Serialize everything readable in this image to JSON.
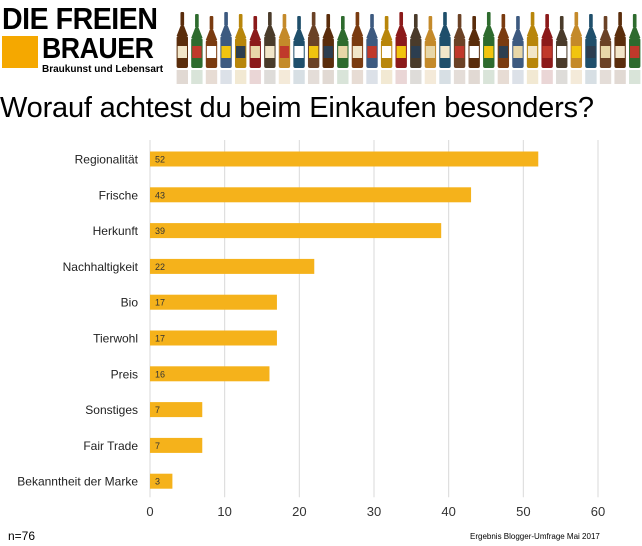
{
  "header": {
    "logo_line1": "DIE FREIEN",
    "logo_line2": "BRAUER",
    "tagline": "Braukunst und Lebensart",
    "brand_color": "#f5a800"
  },
  "question": "Worauf achtest du beim Einkaufen besonders?",
  "footer": {
    "sample_size": "n=76",
    "source": "Ergebnis Blogger-Umfrage Mai 2017"
  },
  "chart_data": {
    "type": "bar",
    "orientation": "horizontal",
    "categories": [
      "Regionalität",
      "Frische",
      "Herkunft",
      "Nachhaltigkeit",
      "Bio",
      "Tierwohl",
      "Preis",
      "Sonstiges",
      "Fair Trade",
      "Bekanntheit der Marke"
    ],
    "values": [
      52,
      43,
      39,
      22,
      17,
      17,
      16,
      7,
      7,
      3
    ],
    "xlim": [
      0,
      60
    ],
    "xticks": [
      0,
      10,
      20,
      30,
      40,
      50,
      60
    ],
    "grid": true,
    "bar_color": "#f5b21b",
    "title": "",
    "xlabel": "",
    "ylabel": ""
  }
}
